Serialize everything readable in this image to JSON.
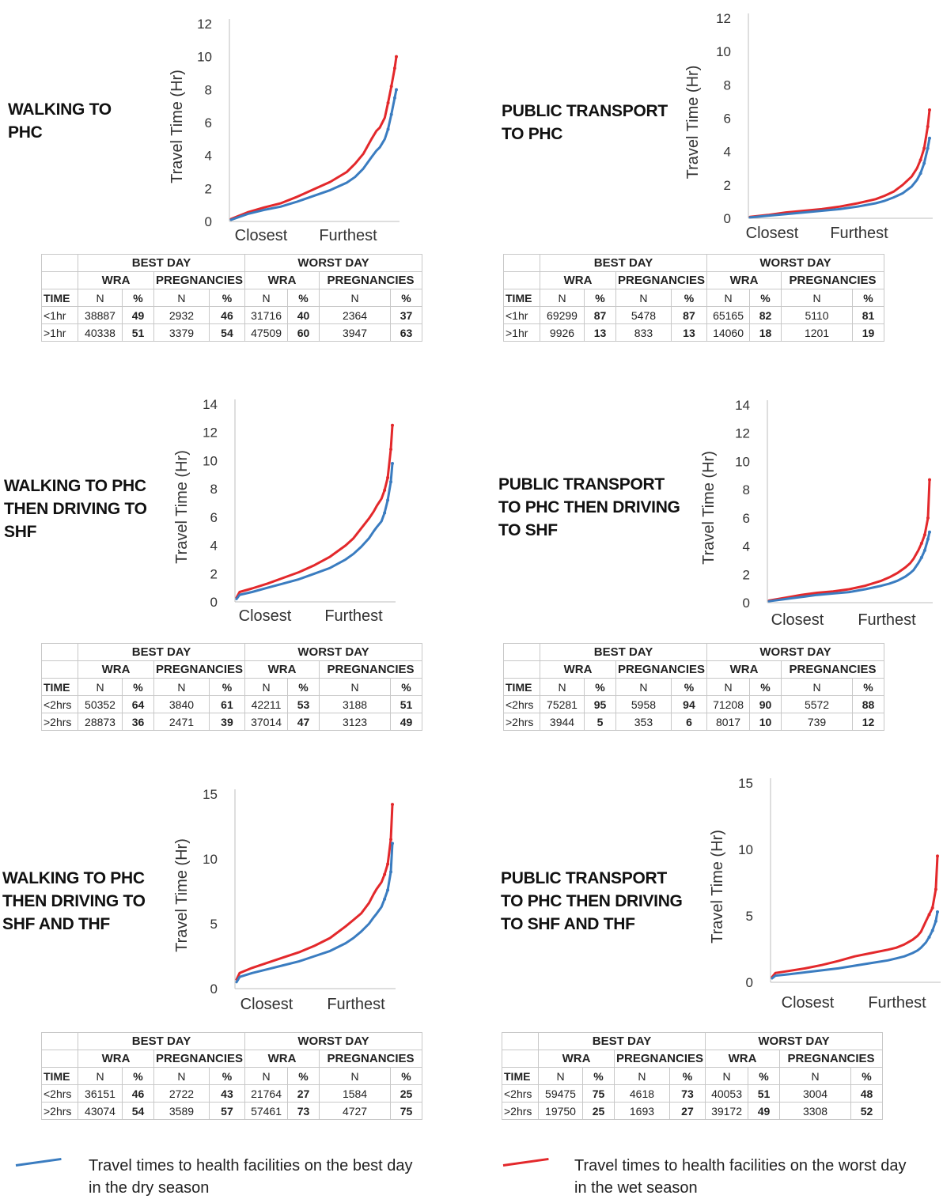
{
  "colors": {
    "best": "#3a7cc0",
    "worst": "#e3282b"
  },
  "table_headers": {
    "best_day": "BEST DAY",
    "worst_day": "WORST DAY",
    "wra": "WRA",
    "pregnancies": "PREGNANCIES",
    "time": "TIME",
    "n": "N",
    "pct": "%"
  },
  "panels": [
    {
      "title": "WALKING TO\nPHC",
      "rows": [
        {
          "label": "<1hr",
          "best": [
            "38887",
            "49",
            "2932",
            "46"
          ],
          "worst": [
            "31716",
            "40",
            "2364",
            "37"
          ]
        },
        {
          "label": ">1hr",
          "best": [
            "40338",
            "51",
            "3379",
            "54"
          ],
          "worst": [
            "47509",
            "60",
            "3947",
            "63"
          ]
        }
      ]
    },
    {
      "title": "PUBLIC TRANSPORT\nTO PHC",
      "rows": [
        {
          "label": "<1hr",
          "best": [
            "69299",
            "87",
            "5478",
            "87"
          ],
          "worst": [
            "65165",
            "82",
            "5110",
            "81"
          ]
        },
        {
          "label": ">1hr",
          "best": [
            "9926",
            "13",
            "833",
            "13"
          ],
          "worst": [
            "14060",
            "18",
            "1201",
            "19"
          ]
        }
      ]
    },
    {
      "title": "WALKING TO PHC\nTHEN DRIVING TO\nSHF",
      "rows": [
        {
          "label": "<2hrs",
          "best": [
            "50352",
            "64",
            "3840",
            "61"
          ],
          "worst": [
            "42211",
            "53",
            "3188",
            "51"
          ]
        },
        {
          "label": ">2hrs",
          "best": [
            "28873",
            "36",
            "2471",
            "39"
          ],
          "worst": [
            "37014",
            "47",
            "3123",
            "49"
          ]
        }
      ]
    },
    {
      "title": "PUBLIC TRANSPORT\nTO PHC THEN DRIVING\nTO SHF",
      "rows": [
        {
          "label": "<2hrs",
          "best": [
            "75281",
            "95",
            "5958",
            "94"
          ],
          "worst": [
            "71208",
            "90",
            "5572",
            "88"
          ]
        },
        {
          "label": ">2hrs",
          "best": [
            "3944",
            "5",
            "353",
            "6"
          ],
          "worst": [
            "8017",
            "10",
            "739",
            "12"
          ]
        }
      ]
    },
    {
      "title": "WALKING TO PHC\nTHEN DRIVING TO\nSHF AND THF",
      "rows": [
        {
          "label": "<2hrs",
          "best": [
            "36151",
            "46",
            "2722",
            "43"
          ],
          "worst": [
            "21764",
            "27",
            "1584",
            "25"
          ]
        },
        {
          "label": ">2hrs",
          "best": [
            "43074",
            "54",
            "3589",
            "57"
          ],
          "worst": [
            "57461",
            "73",
            "4727",
            "75"
          ]
        }
      ]
    },
    {
      "title": "PUBLIC TRANSPORT\nTO PHC THEN DRIVING\nTO SHF AND THF",
      "rows": [
        {
          "label": "<2hrs",
          "best": [
            "59475",
            "75",
            "4618",
            "73"
          ],
          "worst": [
            "40053",
            "51",
            "3004",
            "48"
          ]
        },
        {
          "label": ">2hrs",
          "best": [
            "19750",
            "25",
            "1693",
            "27"
          ],
          "worst": [
            "39172",
            "49",
            "3308",
            "52"
          ]
        }
      ]
    }
  ],
  "legend": {
    "best": "Travel times to health facilities on the best day\nin the dry season",
    "worst": "Travel times to health facilities on the worst day\nin the wet season"
  },
  "chart_data": [
    {
      "type": "scatter",
      "ylabel": "Travel Time (Hr)",
      "ylim": [
        0,
        12
      ],
      "yticks": [
        0,
        2,
        4,
        6,
        8,
        10,
        12
      ],
      "xlabels": [
        "Closest",
        "Furthest"
      ],
      "xlim": [
        0,
        1
      ],
      "series": [
        {
          "color": "best",
          "x": [
            0,
            0.1,
            0.2,
            0.3,
            0.4,
            0.5,
            0.6,
            0.7,
            0.75,
            0.8,
            0.85,
            0.88,
            0.9,
            0.93,
            0.95,
            0.97,
            0.99,
            1.0
          ],
          "y": [
            0.1,
            0.45,
            0.7,
            0.9,
            1.2,
            1.55,
            1.9,
            2.35,
            2.7,
            3.2,
            3.9,
            4.3,
            4.5,
            5.0,
            5.6,
            6.5,
            7.5,
            8.0
          ]
        },
        {
          "color": "worst",
          "x": [
            0,
            0.1,
            0.2,
            0.3,
            0.4,
            0.5,
            0.6,
            0.7,
            0.75,
            0.8,
            0.85,
            0.88,
            0.9,
            0.93,
            0.95,
            0.97,
            0.99,
            1.0
          ],
          "y": [
            0.15,
            0.55,
            0.85,
            1.1,
            1.5,
            1.95,
            2.4,
            3.0,
            3.5,
            4.1,
            5.0,
            5.5,
            5.7,
            6.3,
            7.2,
            8.2,
            9.3,
            10.0
          ]
        }
      ]
    },
    {
      "type": "scatter",
      "ylabel": "Travel Time (Hr)",
      "ylim": [
        0,
        12
      ],
      "yticks": [
        0,
        2,
        4,
        6,
        8,
        10,
        12
      ],
      "xlabels": [
        "Closest",
        "Furthest"
      ],
      "xlim": [
        0,
        1
      ],
      "series": [
        {
          "color": "best",
          "x": [
            0,
            0.1,
            0.2,
            0.3,
            0.4,
            0.5,
            0.6,
            0.7,
            0.75,
            0.8,
            0.85,
            0.9,
            0.93,
            0.95,
            0.97,
            0.99,
            1.0
          ],
          "y": [
            0.05,
            0.15,
            0.25,
            0.35,
            0.45,
            0.55,
            0.7,
            0.9,
            1.05,
            1.25,
            1.5,
            1.9,
            2.3,
            2.7,
            3.3,
            4.2,
            4.8
          ]
        },
        {
          "color": "worst",
          "x": [
            0,
            0.1,
            0.2,
            0.3,
            0.4,
            0.5,
            0.6,
            0.7,
            0.75,
            0.8,
            0.85,
            0.9,
            0.93,
            0.95,
            0.97,
            0.99,
            1.0
          ],
          "y": [
            0.08,
            0.2,
            0.35,
            0.45,
            0.55,
            0.7,
            0.9,
            1.15,
            1.35,
            1.6,
            2.0,
            2.5,
            3.0,
            3.5,
            4.2,
            5.5,
            6.5
          ]
        }
      ]
    },
    {
      "type": "scatter",
      "ylabel": "Travel Time (Hr)",
      "ylim": [
        0,
        14
      ],
      "yticks": [
        0,
        2,
        4,
        6,
        8,
        10,
        12,
        14
      ],
      "xlabels": [
        "Closest",
        "Furthest"
      ],
      "xlim": [
        0,
        1
      ],
      "series": [
        {
          "color": "best",
          "x": [
            0,
            0.02,
            0.1,
            0.2,
            0.3,
            0.4,
            0.5,
            0.6,
            0.7,
            0.75,
            0.8,
            0.85,
            0.88,
            0.9,
            0.93,
            0.95,
            0.97,
            0.99,
            1.0
          ],
          "y": [
            0.2,
            0.5,
            0.7,
            1.0,
            1.3,
            1.6,
            2.0,
            2.4,
            3.0,
            3.4,
            3.9,
            4.5,
            5.0,
            5.3,
            5.7,
            6.3,
            7.2,
            8.5,
            9.8
          ]
        },
        {
          "color": "worst",
          "x": [
            0,
            0.02,
            0.1,
            0.2,
            0.3,
            0.4,
            0.5,
            0.6,
            0.7,
            0.75,
            0.8,
            0.85,
            0.88,
            0.9,
            0.93,
            0.95,
            0.97,
            0.99,
            1.0
          ],
          "y": [
            0.3,
            0.7,
            0.95,
            1.3,
            1.7,
            2.1,
            2.6,
            3.2,
            4.0,
            4.5,
            5.2,
            5.9,
            6.4,
            6.8,
            7.3,
            7.9,
            8.8,
            10.8,
            12.5
          ]
        }
      ]
    },
    {
      "type": "scatter",
      "ylabel": "Travel Time (Hr)",
      "ylim": [
        0,
        14
      ],
      "yticks": [
        0,
        2,
        4,
        6,
        8,
        10,
        12,
        14
      ],
      "xlabels": [
        "Closest",
        "Furthest"
      ],
      "xlim": [
        0,
        1
      ],
      "series": [
        {
          "color": "best",
          "x": [
            0,
            0.1,
            0.2,
            0.3,
            0.4,
            0.5,
            0.6,
            0.7,
            0.75,
            0.8,
            0.85,
            0.88,
            0.9,
            0.93,
            0.95,
            0.97,
            0.99,
            1.0
          ],
          "y": [
            0.1,
            0.25,
            0.4,
            0.55,
            0.65,
            0.75,
            0.95,
            1.2,
            1.35,
            1.55,
            1.85,
            2.1,
            2.3,
            2.8,
            3.2,
            3.7,
            4.5,
            5.0
          ]
        },
        {
          "color": "worst",
          "x": [
            0,
            0.1,
            0.2,
            0.3,
            0.4,
            0.5,
            0.6,
            0.7,
            0.75,
            0.8,
            0.85,
            0.88,
            0.9,
            0.93,
            0.95,
            0.97,
            0.99,
            1.0
          ],
          "y": [
            0.15,
            0.35,
            0.55,
            0.7,
            0.8,
            0.95,
            1.2,
            1.55,
            1.8,
            2.1,
            2.5,
            2.8,
            3.1,
            3.7,
            4.2,
            4.8,
            6.0,
            8.7
          ]
        }
      ]
    },
    {
      "type": "scatter",
      "ylabel": "Travel Time (Hr)",
      "ylim": [
        0,
        15
      ],
      "yticks": [
        0,
        5,
        10,
        15
      ],
      "xlabels": [
        "Closest",
        "Furthest"
      ],
      "xlim": [
        0,
        1
      ],
      "series": [
        {
          "color": "best",
          "x": [
            0,
            0.02,
            0.1,
            0.2,
            0.3,
            0.4,
            0.5,
            0.6,
            0.7,
            0.75,
            0.8,
            0.85,
            0.88,
            0.9,
            0.93,
            0.95,
            0.97,
            0.99,
            1.0
          ],
          "y": [
            0.5,
            0.9,
            1.2,
            1.5,
            1.8,
            2.1,
            2.5,
            2.9,
            3.5,
            3.9,
            4.4,
            5.0,
            5.5,
            5.8,
            6.3,
            6.9,
            7.6,
            9.0,
            11.2
          ]
        },
        {
          "color": "worst",
          "x": [
            0,
            0.02,
            0.1,
            0.2,
            0.3,
            0.4,
            0.5,
            0.6,
            0.7,
            0.75,
            0.8,
            0.85,
            0.88,
            0.9,
            0.93,
            0.95,
            0.97,
            0.99,
            1.0
          ],
          "y": [
            0.7,
            1.2,
            1.6,
            2.0,
            2.4,
            2.8,
            3.3,
            3.9,
            4.8,
            5.3,
            5.8,
            6.6,
            7.3,
            7.7,
            8.2,
            8.8,
            9.6,
            11.5,
            14.2
          ]
        }
      ]
    },
    {
      "type": "scatter",
      "ylabel": "Travel Time (Hr)",
      "ylim": [
        0,
        15
      ],
      "yticks": [
        0,
        5,
        10,
        15
      ],
      "xlabels": [
        "Closest",
        "Furthest"
      ],
      "xlim": [
        0,
        1
      ],
      "series": [
        {
          "color": "best",
          "x": [
            0,
            0.02,
            0.1,
            0.2,
            0.3,
            0.4,
            0.5,
            0.6,
            0.7,
            0.75,
            0.8,
            0.85,
            0.88,
            0.9,
            0.93,
            0.95,
            0.97,
            0.99,
            1.0
          ],
          "y": [
            0.3,
            0.5,
            0.6,
            0.75,
            0.9,
            1.05,
            1.25,
            1.45,
            1.65,
            1.8,
            1.95,
            2.2,
            2.4,
            2.6,
            3.0,
            3.4,
            3.9,
            4.6,
            5.3
          ]
        },
        {
          "color": "worst",
          "x": [
            0,
            0.02,
            0.1,
            0.2,
            0.3,
            0.4,
            0.5,
            0.6,
            0.7,
            0.75,
            0.8,
            0.85,
            0.88,
            0.9,
            0.93,
            0.95,
            0.97,
            0.99,
            1.0
          ],
          "y": [
            0.4,
            0.7,
            0.85,
            1.05,
            1.3,
            1.6,
            1.95,
            2.2,
            2.45,
            2.6,
            2.85,
            3.2,
            3.5,
            3.8,
            4.6,
            5.1,
            5.6,
            7.0,
            9.5
          ]
        }
      ]
    }
  ]
}
